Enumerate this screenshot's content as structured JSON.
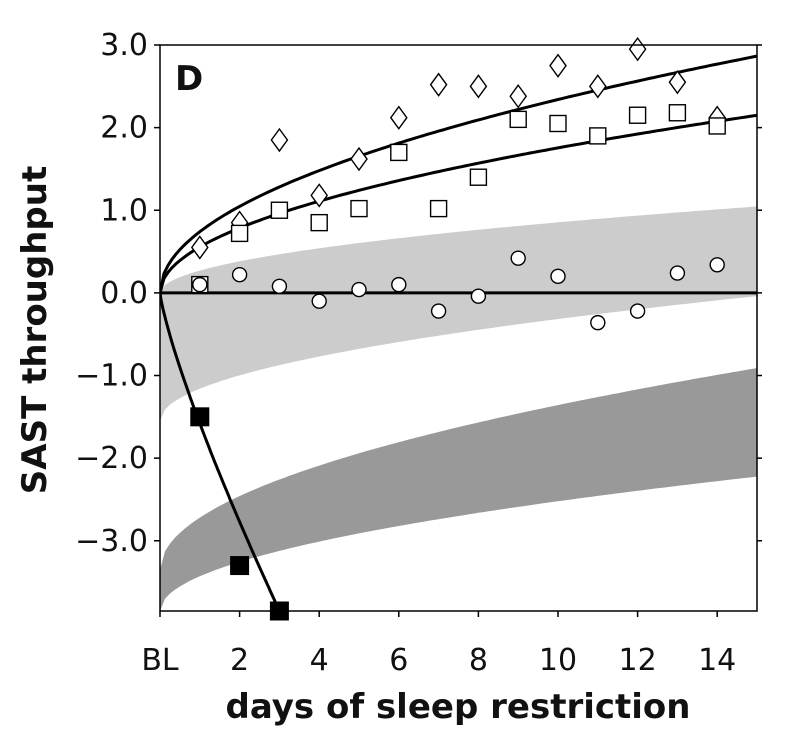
{
  "chart_data": {
    "type": "scatter",
    "panel_label": "D",
    "xlabel": "days of sleep restriction",
    "ylabel": "SAST throughput",
    "xlim": [
      0,
      15
    ],
    "ylim": [
      -3.85,
      3.0
    ],
    "x_ticks": [
      {
        "value": 0,
        "label": "BL"
      },
      {
        "value": 2,
        "label": "2"
      },
      {
        "value": 4,
        "label": "4"
      },
      {
        "value": 6,
        "label": "6"
      },
      {
        "value": 8,
        "label": "8"
      },
      {
        "value": 10,
        "label": "10"
      },
      {
        "value": 12,
        "label": "12"
      },
      {
        "value": 14,
        "label": "14"
      }
    ],
    "y_ticks": [
      {
        "value": 3.0,
        "label": "3.0"
      },
      {
        "value": 2.0,
        "label": "2.0"
      },
      {
        "value": 1.0,
        "label": "1.0"
      },
      {
        "value": 0.0,
        "label": "0.0"
      },
      {
        "value": -1.0,
        "label": "−1.0"
      },
      {
        "value": -2.0,
        "label": "−2.0"
      },
      {
        "value": -3.0,
        "label": "−3.0"
      }
    ],
    "bands": [
      {
        "name": "light-band",
        "color": "#cccccc",
        "upper": {
          "a": 0.0,
          "b": 0.27,
          "p": 0.5
        },
        "lower": {
          "a": -1.55,
          "b": 0.39,
          "p": 0.5
        }
      },
      {
        "name": "dark-band",
        "color": "#999999",
        "upper": {
          "a": -3.35,
          "b": 0.63,
          "p": 0.5
        },
        "lower": {
          "a": -3.85,
          "b": 0.42,
          "p": 0.5
        }
      }
    ],
    "series": [
      {
        "name": "diamonds",
        "marker": "diamond",
        "points": [
          [
            1,
            0.55
          ],
          [
            2,
            0.85
          ],
          [
            3,
            1.85
          ],
          [
            4,
            1.18
          ],
          [
            5,
            1.62
          ],
          [
            6,
            2.12
          ],
          [
            7,
            2.52
          ],
          [
            8,
            2.5
          ],
          [
            9,
            2.38
          ],
          [
            10,
            2.75
          ],
          [
            11,
            2.5
          ],
          [
            12,
            2.95
          ],
          [
            13,
            2.55
          ],
          [
            14,
            2.12
          ]
        ],
        "fit": {
          "a": 0,
          "b": 0.74,
          "p": 0.5
        }
      },
      {
        "name": "open-squares",
        "marker": "square",
        "points": [
          [
            1,
            0.1
          ],
          [
            2,
            0.72
          ],
          [
            3,
            1.0
          ],
          [
            4,
            0.85
          ],
          [
            5,
            1.02
          ],
          [
            6,
            1.7
          ],
          [
            7,
            1.02
          ],
          [
            8,
            1.4
          ],
          [
            9,
            2.1
          ],
          [
            10,
            2.05
          ],
          [
            11,
            1.9
          ],
          [
            12,
            2.15
          ],
          [
            13,
            2.18
          ],
          [
            14,
            2.02
          ]
        ],
        "fit": {
          "a": 0,
          "b": 0.555,
          "p": 0.5
        }
      },
      {
        "name": "circles",
        "marker": "circle",
        "points": [
          [
            1,
            0.1
          ],
          [
            2,
            0.22
          ],
          [
            3,
            0.08
          ],
          [
            4,
            -0.1
          ],
          [
            5,
            0.04
          ],
          [
            6,
            0.1
          ],
          [
            7,
            -0.22
          ],
          [
            8,
            -0.04
          ],
          [
            9,
            0.42
          ],
          [
            10,
            0.2
          ],
          [
            11,
            -0.36
          ],
          [
            12,
            -0.22
          ],
          [
            13,
            0.24
          ],
          [
            14,
            0.34
          ]
        ],
        "fit": {
          "a": 0,
          "b": 0.0,
          "p": 1
        }
      },
      {
        "name": "filled-squares",
        "marker": "filled-square",
        "points": [
          [
            1,
            -1.5
          ],
          [
            2,
            -3.3
          ],
          [
            3,
            -3.85
          ]
        ],
        "fit": {
          "a": 0,
          "b": -1.58,
          "p": 0.81,
          "xmax": 3.0
        }
      }
    ]
  }
}
